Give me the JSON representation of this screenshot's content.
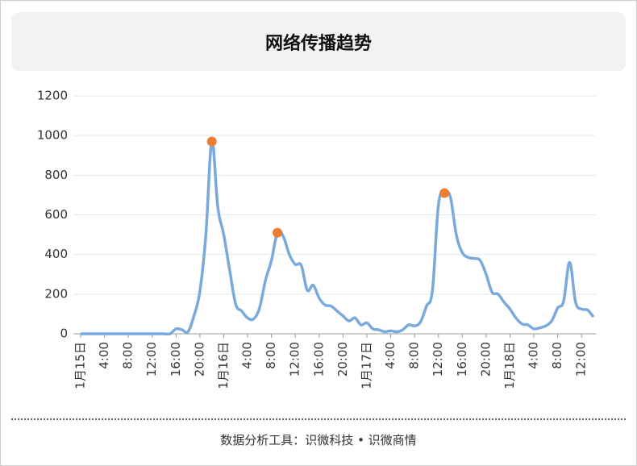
{
  "chart_data": {
    "type": "line",
    "title": "网络传播趋势",
    "categories": [
      "1月15日",
      null,
      null,
      null,
      "4:00",
      null,
      null,
      null,
      "8:00",
      null,
      null,
      null,
      "12:00",
      null,
      null,
      null,
      "16:00",
      null,
      null,
      null,
      "20:00",
      null,
      null,
      null,
      "1月16日",
      null,
      null,
      null,
      "4:00",
      null,
      null,
      null,
      "8:00",
      null,
      null,
      null,
      "12:00",
      null,
      null,
      null,
      "16:00",
      null,
      null,
      null,
      "20:00",
      null,
      null,
      null,
      "1月17日",
      null,
      null,
      null,
      "4:00",
      null,
      null,
      null,
      "8:00",
      null,
      null,
      null,
      "12:00",
      null,
      null,
      null,
      "16:00",
      null,
      null,
      null,
      "20:00",
      null,
      null,
      null,
      "1月18日",
      null,
      null,
      null,
      "4:00",
      null,
      null,
      null,
      "8:00",
      null,
      null,
      null,
      "12:00",
      null,
      null
    ],
    "values": [
      0,
      0,
      0,
      0,
      0,
      0,
      0,
      0,
      0,
      0,
      0,
      0,
      0,
      0,
      0,
      0,
      25,
      20,
      10,
      90,
      215,
      500,
      970,
      640,
      500,
      320,
      150,
      115,
      80,
      75,
      130,
      270,
      370,
      510,
      490,
      400,
      350,
      345,
      220,
      245,
      180,
      145,
      140,
      115,
      90,
      65,
      80,
      45,
      55,
      25,
      20,
      10,
      15,
      10,
      20,
      45,
      40,
      60,
      140,
      220,
      650,
      710,
      690,
      500,
      410,
      385,
      380,
      370,
      300,
      210,
      200,
      160,
      125,
      80,
      50,
      45,
      25,
      30,
      40,
      65,
      130,
      165,
      360,
      160,
      125,
      120,
      85
    ],
    "color": "#7aaadc",
    "highlight": {
      "color": "#ed7d31",
      "indices": [
        22,
        33,
        61
      ]
    },
    "ylim": [
      0,
      1200
    ],
    "yticks": [
      0,
      200,
      400,
      600,
      800,
      1000,
      1200
    ],
    "grid": true
  },
  "footer": "数据分析工具：识微科技 • 识微商情"
}
